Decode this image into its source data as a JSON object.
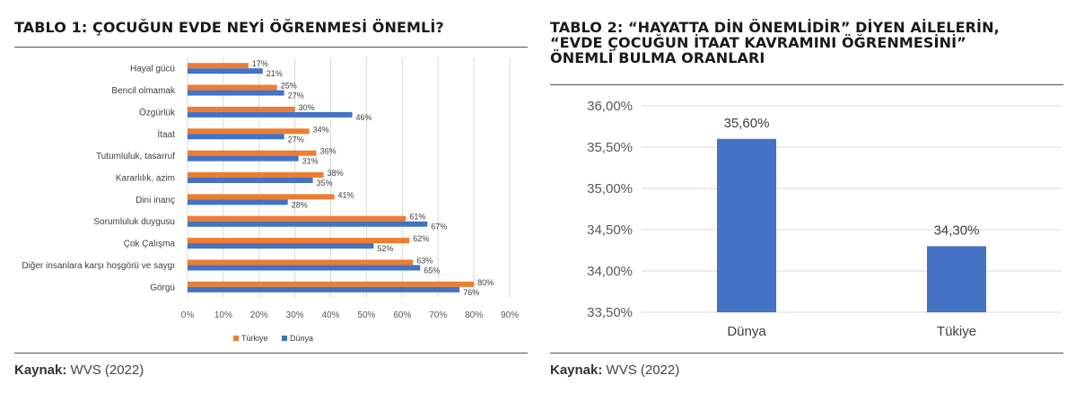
{
  "panel1": {
    "title": "TABLO 1: ÇOCUĞUN EVDE NEYİ ÖĞRENMESİ ÖNEMLİ?",
    "source_label": "Kaynak:",
    "source_value": "WVS (2022)"
  },
  "panel2": {
    "title": "TABLO 2: “HAYATTA DİN ÖNEMLİDİR” DİYEN AİLELERİN,\n“EVDE ÇOCUĞUN İTAAT KAVRAMINI ÖĞRENMESİNİ”\nÖNEMLİ BULMA ORANLARI",
    "source_label": "Kaynak:",
    "source_value": "WVS (2022)"
  },
  "chart_data": [
    {
      "type": "bar",
      "orientation": "horizontal",
      "categories": [
        "Hayal gücü",
        "Bencil olmamak",
        "Özgürlük",
        "İtaat",
        "Tutumluluk, tasarruf",
        "Kararlılık, azim",
        "Dini inanç",
        "Sorumluluk duygusu",
        "Çok Çalışma",
        "Diğer insanlara karşı hoşgörü ve saygı",
        "Görgü"
      ],
      "series": [
        {
          "name": "Türkiye",
          "color": "#ED7D31",
          "values": [
            17,
            25,
            30,
            34,
            36,
            38,
            41,
            61,
            62,
            63,
            80
          ],
          "labels": [
            "17%",
            "25%",
            "30%",
            "34%",
            "36%",
            "38%",
            "41%",
            "61%",
            "62%",
            "63%",
            "80%"
          ]
        },
        {
          "name": "Dünya",
          "color": "#4472C4",
          "values": [
            21,
            27,
            46,
            27,
            31,
            35,
            28,
            67,
            52,
            65,
            76
          ],
          "labels": [
            "21%",
            "27%",
            "46%",
            "27%",
            "31%",
            "35%",
            "28%",
            "67%",
            "52%",
            "65%",
            "76%"
          ]
        }
      ],
      "xlim": [
        0,
        90
      ],
      "xticks": [
        "0%",
        "10%",
        "20%",
        "30%",
        "40%",
        "50%",
        "60%",
        "70%",
        "80%",
        "90%"
      ],
      "legend": "bottom",
      "grid": true
    },
    {
      "type": "bar",
      "categories": [
        "Dünya",
        "Tükiye"
      ],
      "values": [
        35.6,
        34.3
      ],
      "labels": [
        "35,60%",
        "34,30%"
      ],
      "color": "#4472C4",
      "ylim": [
        33.5,
        36.0
      ],
      "yticks": [
        "33,50%",
        "34,00%",
        "34,50%",
        "35,00%",
        "35,50%",
        "36,00%"
      ],
      "grid": true
    }
  ]
}
